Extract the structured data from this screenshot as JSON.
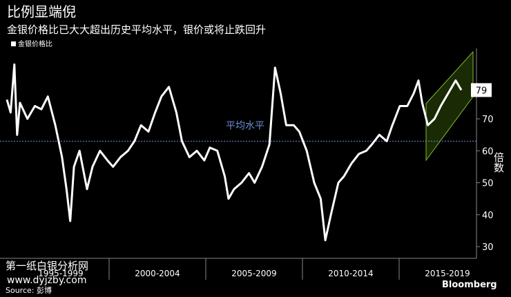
{
  "chart_data": {
    "type": "line",
    "title": "比例显端倪",
    "subtitle": "金银价格比已大大超出历史平均水平，银价或将止跌回升",
    "y_axis_label": "倍数",
    "source": "Source: 彭博",
    "brand": "Bloomberg",
    "watermarks": [
      "第一纸白银分析网",
      "www.dyjzby.com"
    ],
    "categories": [
      "1995-1999",
      "2000-2004",
      "2005-2009",
      "2010-2014",
      "2015-2019"
    ],
    "x": [
      1995.0,
      1995.2,
      1995.4,
      1995.55,
      1995.7,
      1996.1,
      1996.5,
      1996.85,
      1997.2,
      1997.6,
      1997.96,
      1998.2,
      1998.4,
      1998.6,
      1998.9,
      1999.3,
      1999.6,
      2000.0,
      2000.4,
      2000.7,
      2001.1,
      2001.5,
      2001.85,
      2002.2,
      2002.6,
      2002.96,
      2003.3,
      2003.7,
      2004.1,
      2004.4,
      2004.8,
      2005.2,
      2005.6,
      2005.9,
      2006.3,
      2006.7,
      2006.9,
      2007.2,
      2007.6,
      2008.0,
      2008.3,
      2008.7,
      2009.1,
      2009.4,
      2009.7,
      2010.0,
      2010.4,
      2010.7,
      2011.1,
      2011.5,
      2011.85,
      2012.1,
      2012.4,
      2012.8,
      2013.1,
      2013.5,
      2013.9,
      2014.3,
      2014.6,
      2015.0,
      2015.4,
      2015.7,
      2016.1,
      2016.5,
      2016.85,
      2017.1,
      2017.3,
      2017.6,
      2017.96,
      2018.3,
      2018.7,
      2019.1,
      2019.4
    ],
    "series": [
      {
        "name": "金银价格比",
        "color": "#ffffff",
        "values": [
          76,
          72,
          87,
          65,
          75,
          70,
          74,
          73,
          77,
          68,
          58,
          48,
          38,
          55,
          60,
          48,
          55,
          60,
          57,
          55,
          58,
          60,
          63,
          68,
          66,
          72,
          77,
          80,
          72,
          63,
          58,
          60,
          57,
          61,
          60,
          52,
          45,
          48,
          50,
          53,
          50,
          55,
          62,
          86,
          78,
          68,
          68,
          66,
          60,
          50,
          45,
          32,
          40,
          50,
          52,
          56,
          59,
          60,
          62,
          65,
          63,
          68,
          74,
          74,
          78,
          82,
          75,
          68,
          70,
          74,
          78,
          82,
          79
        ]
      }
    ],
    "reference_line": {
      "value": 63,
      "label": "平均水平",
      "color": "#6f8fd8"
    },
    "xlim": [
      1995.0,
      2019.4
    ],
    "ylim": [
      27,
      92
    ],
    "yticks": [
      30,
      40,
      50,
      60,
      70
    ],
    "grid": false
  }
}
